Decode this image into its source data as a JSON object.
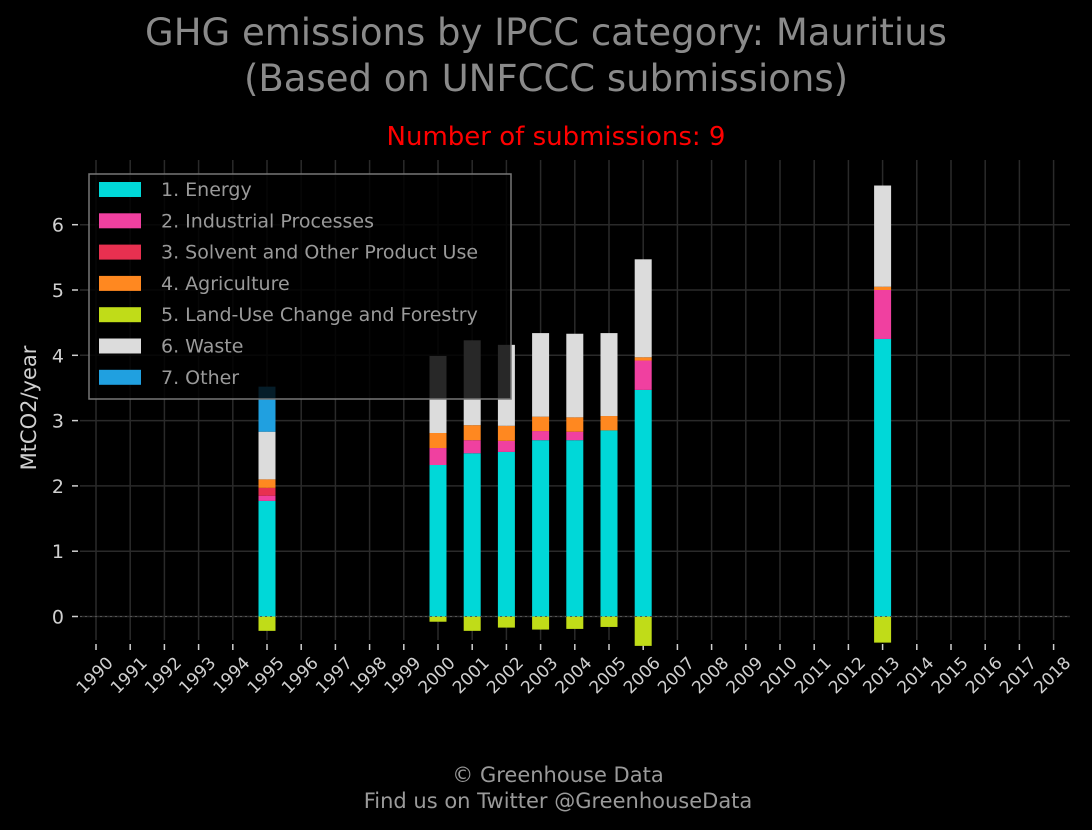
{
  "title_line1": "GHG emissions by IPCC category: Mauritius",
  "title_line2": "(Based on UNFCCC submissions)",
  "subtitle": "Number of submissions: 9",
  "footer_line1": "© Greenhouse Data",
  "footer_line2": "Find us on Twitter @GreenhouseData",
  "colors": {
    "background": "#000000",
    "grid": "#2a2a2a",
    "axis_text": "#d0d0d0",
    "title": "#8a8a8a",
    "subtitle": "#ff0000"
  },
  "chart_data": {
    "type": "bar",
    "stacked": true,
    "xlabel": "",
    "ylabel": "MtCO2/year",
    "ylim": [
      -0.45,
      6.8
    ],
    "yticks": [
      0,
      1,
      2,
      3,
      4,
      5,
      6
    ],
    "grid": true,
    "legend_position": "top-left",
    "categories": [
      "1990",
      "1991",
      "1992",
      "1993",
      "1994",
      "1995",
      "1996",
      "1997",
      "1998",
      "1999",
      "2000",
      "2001",
      "2002",
      "2003",
      "2004",
      "2005",
      "2006",
      "2007",
      "2008",
      "2009",
      "2010",
      "2011",
      "2012",
      "2013",
      "2014",
      "2015",
      "2016",
      "2017",
      "2018"
    ],
    "series": [
      {
        "name": "1. Energy",
        "color": "#00d8d8",
        "values": [
          null,
          null,
          null,
          null,
          null,
          1.77,
          null,
          null,
          null,
          null,
          2.32,
          2.5,
          2.52,
          2.7,
          2.7,
          2.85,
          3.47,
          null,
          null,
          null,
          null,
          null,
          null,
          4.25,
          null,
          null,
          null,
          null,
          null
        ]
      },
      {
        "name": "2. Industrial Processes",
        "color": "#f040a0",
        "values": [
          null,
          null,
          null,
          null,
          null,
          0.08,
          null,
          null,
          null,
          null,
          0.26,
          0.2,
          0.17,
          0.14,
          0.13,
          0.0,
          0.45,
          null,
          null,
          null,
          null,
          null,
          null,
          0.75,
          null,
          null,
          null,
          null,
          null
        ]
      },
      {
        "name": "3. Solvent and Other Product Use",
        "color": "#e83050",
        "values": [
          null,
          null,
          null,
          null,
          null,
          0.12,
          null,
          null,
          null,
          null,
          0.0,
          0.0,
          0.0,
          0.0,
          0.0,
          0.0,
          0.0,
          null,
          null,
          null,
          null,
          null,
          null,
          0.0,
          null,
          null,
          null,
          null,
          null
        ]
      },
      {
        "name": "4. Agriculture",
        "color": "#ff8820",
        "values": [
          null,
          null,
          null,
          null,
          null,
          0.13,
          null,
          null,
          null,
          null,
          0.23,
          0.23,
          0.23,
          0.22,
          0.22,
          0.22,
          0.05,
          null,
          null,
          null,
          null,
          null,
          null,
          0.05,
          null,
          null,
          null,
          null,
          null
        ]
      },
      {
        "name": "5. Land-Use Change and Forestry",
        "color": "#c0dc18",
        "values": [
          null,
          null,
          null,
          null,
          null,
          -0.22,
          null,
          null,
          null,
          null,
          -0.08,
          -0.22,
          -0.17,
          -0.2,
          -0.19,
          -0.16,
          -0.45,
          null,
          null,
          null,
          null,
          null,
          null,
          -0.4,
          null,
          null,
          null,
          null,
          null
        ]
      },
      {
        "name": "6. Waste",
        "color": "#dcdcdc",
        "values": [
          null,
          null,
          null,
          null,
          null,
          0.73,
          null,
          null,
          null,
          null,
          1.18,
          1.3,
          1.24,
          1.28,
          1.28,
          1.27,
          1.5,
          null,
          null,
          null,
          null,
          null,
          null,
          1.55,
          null,
          null,
          null,
          null,
          null
        ]
      },
      {
        "name": "7. Other",
        "color": "#20a0e0",
        "values": [
          null,
          null,
          null,
          null,
          null,
          0.69,
          null,
          null,
          null,
          null,
          0.0,
          0.0,
          0.0,
          0.0,
          0.0,
          0.0,
          0.0,
          null,
          null,
          null,
          null,
          null,
          null,
          0.0,
          null,
          null,
          null,
          null,
          null
        ]
      }
    ]
  }
}
